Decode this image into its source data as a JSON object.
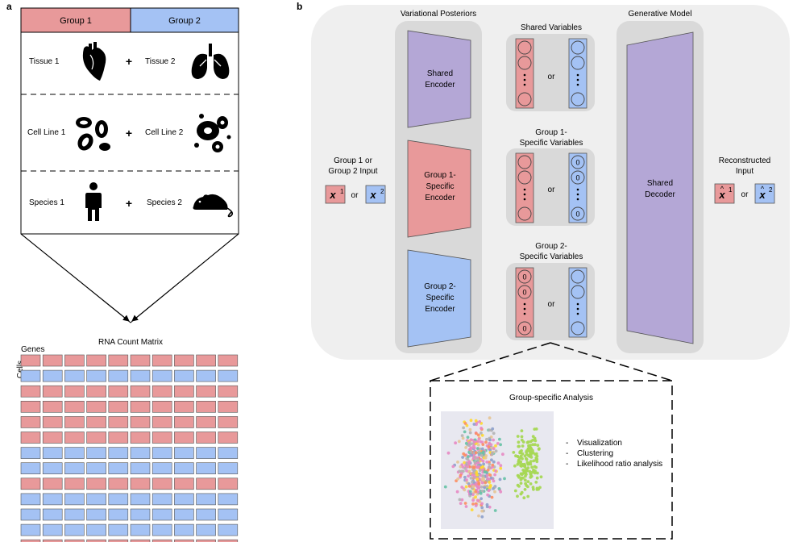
{
  "panel_a": {
    "label": "a",
    "header": {
      "group1": "Group 1",
      "group2": "Group 2"
    },
    "rows": [
      {
        "left": "Tissue 1",
        "right": "Tissue 2",
        "left_icon": "heart-icon",
        "right_icon": "lungs-icon",
        "plus": "+"
      },
      {
        "left": "Cell Line 1",
        "right": "Cell Line 2",
        "left_icon": "red-blood-cells-icon",
        "right_icon": "cell-nucleus-icon",
        "plus": "+"
      },
      {
        "left": "Species 1",
        "right": "Species 2",
        "left_icon": "human-icon",
        "right_icon": "mouse-icon",
        "plus": "+"
      }
    ],
    "matrix": {
      "title": "RNA Count Matrix",
      "genes_label": "Genes",
      "cells_label": "Cells",
      "row_groups": [
        1,
        2,
        1,
        1,
        1,
        1,
        2,
        2,
        1,
        2,
        2,
        2,
        1
      ],
      "columns": 10
    }
  },
  "panel_b": {
    "label": "b",
    "variational_title": "Variational Posteriors",
    "generative_title": "Generative Model",
    "input_label_line1": "Group 1 or",
    "input_label_line2": "Group 2 Input",
    "input_or": "or",
    "x1": "x",
    "x1_sup": "1",
    "x2": "x",
    "x2_sup": "2",
    "shared_encoder": [
      "Shared",
      "Encoder"
    ],
    "group1_encoder": [
      "Group 1-",
      "Specific",
      "Encoder"
    ],
    "group2_encoder": [
      "Group 2-",
      "Specific",
      "Encoder"
    ],
    "shared_vars_title": "Shared Variables",
    "g1_vars_title": [
      "Group 1-",
      "Specific Variables"
    ],
    "g2_vars_title": [
      "Group 2-",
      "Specific Variables"
    ],
    "vars_or": "or",
    "zero": "0",
    "decoder": [
      "Shared",
      "Decoder"
    ],
    "recon_label_line1": "Reconstructed",
    "recon_label_line2": "Input",
    "recon_or": "or",
    "analysis": {
      "title": "Group-specific Analysis",
      "items": [
        "Visualization",
        "Clustering",
        "Likelihood ratio analysis"
      ],
      "bullet": "-"
    }
  },
  "colors": {
    "group1": "#e8999a",
    "group2": "#a4c2f4",
    "purple": "#b4a7d6",
    "panel_bg": "#efefef",
    "column_bg": "#d9d9d9",
    "scatter_bg": "#e8e8f0",
    "scatter_green": "#a6d854"
  }
}
